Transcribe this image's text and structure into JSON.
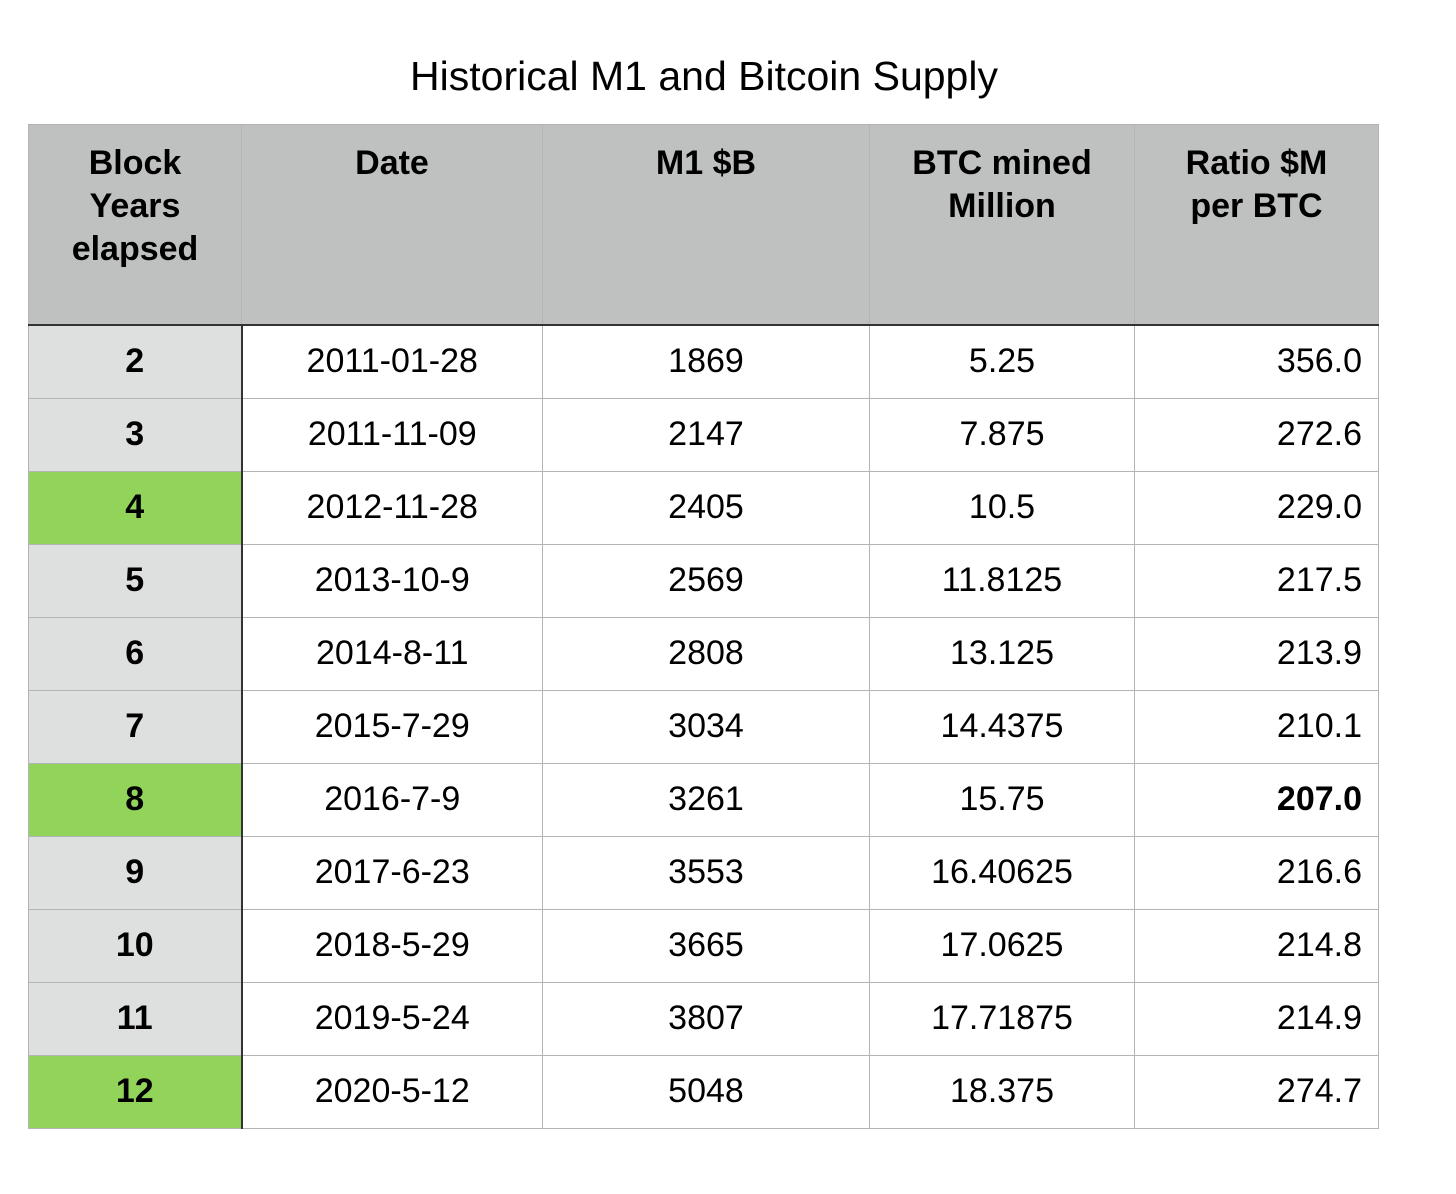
{
  "title": "Historical M1 and Bitcoin Supply",
  "columns": [
    [
      "Block",
      "Years",
      "elapsed"
    ],
    [
      "Date"
    ],
    [
      "M1 $B"
    ],
    [
      "BTC mined",
      "Million"
    ],
    [
      "Ratio $M",
      "per BTC"
    ]
  ],
  "colors": {
    "header_bg": "#bfc0c0",
    "rowhead_bg": "#dedfdf",
    "halving_green": "#92d35a"
  },
  "rows": [
    {
      "years": "2",
      "date": "2011-01-28",
      "m1": "1869",
      "btc": "5.25",
      "ratio": "356.0",
      "halving": false,
      "emphasis": false
    },
    {
      "years": "3",
      "date": "2011-11-09",
      "m1": "2147",
      "btc": "7.875",
      "ratio": "272.6",
      "halving": false,
      "emphasis": false
    },
    {
      "years": "4",
      "date": "2012-11-28",
      "m1": "2405",
      "btc": "10.5",
      "ratio": "229.0",
      "halving": true,
      "emphasis": false
    },
    {
      "years": "5",
      "date": "2013-10-9",
      "m1": "2569",
      "btc": "11.8125",
      "ratio": "217.5",
      "halving": false,
      "emphasis": false
    },
    {
      "years": "6",
      "date": "2014-8-11",
      "m1": "2808",
      "btc": "13.125",
      "ratio": "213.9",
      "halving": false,
      "emphasis": false
    },
    {
      "years": "7",
      "date": "2015-7-29",
      "m1": "3034",
      "btc": "14.4375",
      "ratio": "210.1",
      "halving": false,
      "emphasis": false
    },
    {
      "years": "8",
      "date": "2016-7-9",
      "m1": "3261",
      "btc": "15.75",
      "ratio": "207.0",
      "halving": true,
      "emphasis": true
    },
    {
      "years": "9",
      "date": "2017-6-23",
      "m1": "3553",
      "btc": "16.40625",
      "ratio": "216.6",
      "halving": false,
      "emphasis": false
    },
    {
      "years": "10",
      "date": "2018-5-29",
      "m1": "3665",
      "btc": "17.0625",
      "ratio": "214.8",
      "halving": false,
      "emphasis": false
    },
    {
      "years": "11",
      "date": "2019-5-24",
      "m1": "3807",
      "btc": "17.71875",
      "ratio": "214.9",
      "halving": false,
      "emphasis": false
    },
    {
      "years": "12",
      "date": "2020-5-12",
      "m1": "5048",
      "btc": "18.375",
      "ratio": "274.7",
      "halving": true,
      "emphasis": false
    }
  ]
}
